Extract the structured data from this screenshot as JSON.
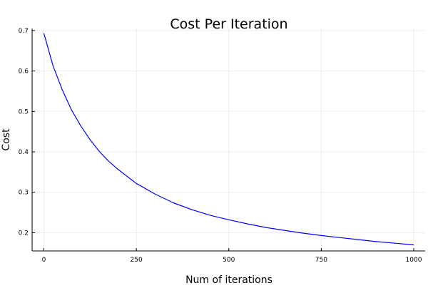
{
  "chart_data": {
    "type": "line",
    "title": "Cost Per Iteration",
    "xlabel": "Num of iterations",
    "ylabel": "Cost",
    "xlim": [
      0,
      1000
    ],
    "ylim": [
      0.155,
      0.705
    ],
    "xticks": [
      0,
      250,
      500,
      750,
      1000
    ],
    "xtick_labels": [
      "0",
      "250",
      "500",
      "750",
      "1000"
    ],
    "yticks": [
      0.2,
      0.3,
      0.4,
      0.5,
      0.6,
      0.7
    ],
    "ytick_labels": [
      "0.2",
      "0.3",
      "0.4",
      "0.5",
      "0.6",
      "0.7"
    ],
    "grid": true,
    "legend": false,
    "series": [
      {
        "color": "#0000ff",
        "x": [
          0,
          25,
          50,
          75,
          100,
          125,
          150,
          175,
          200,
          250,
          300,
          350,
          400,
          450,
          500,
          550,
          600,
          650,
          700,
          750,
          800,
          850,
          900,
          950,
          1000
        ],
        "y": [
          0.693,
          0.612,
          0.553,
          0.503,
          0.464,
          0.43,
          0.401,
          0.377,
          0.357,
          0.322,
          0.296,
          0.274,
          0.257,
          0.243,
          0.232,
          0.222,
          0.213,
          0.206,
          0.199,
          0.193,
          0.188,
          0.183,
          0.178,
          0.174,
          0.17
        ]
      }
    ]
  }
}
